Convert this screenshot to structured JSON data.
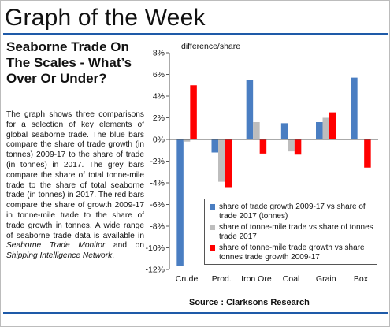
{
  "header": {
    "title": "Graph of the Week",
    "accent_color": "#1e5aa8"
  },
  "article": {
    "headline": "Seaborne Trade On The Scales - What’s Over Or Under?",
    "body_parts": [
      "The graph shows three comparisons for a selection of key elements of global seaborne trade. The blue bars compare the share of trade growth (in tonnes) 2009-17 to the share of trade (in tonnes) in 2017. The grey bars compare the share of total tonne-mile trade to the share of total seaborne trade (in tonnes) in 2017. The red bars compare the share of growth 2009-17 in tonne-mile trade to the share of trade growth in tonnes. A wide range of seaborne trade data is available in ",
      "Seaborne Trade Monitor",
      " and on ",
      "Shipping Intelligence Network",
      "."
    ]
  },
  "chart_data": {
    "type": "bar",
    "ylabel": "difference/share",
    "categories": [
      "Crude",
      "Prod.",
      "Iron Ore",
      "Coal",
      "Grain",
      "Box"
    ],
    "ylim": [
      -12,
      8
    ],
    "yticks": [
      -12,
      -10,
      -8,
      -6,
      -4,
      -2,
      0,
      2,
      4,
      6,
      8
    ],
    "ytick_labels": [
      "-12%",
      "-10%",
      "-8%",
      "-6%",
      "-4%",
      "-2%",
      "0%",
      "2%",
      "4%",
      "6%",
      "8%"
    ],
    "grid": false,
    "legend_position": "bottom-right",
    "series": [
      {
        "name": "share of trade growth 2009-17 vs share of trade 2017 (tonnes)",
        "color": "#4a7ec2",
        "values": [
          -11.7,
          -1.2,
          5.5,
          1.5,
          1.6,
          5.7
        ]
      },
      {
        "name": "share of tonne-mile trade vs share of tonnes trade 2017",
        "color": "#bdbdbd",
        "values": [
          -0.2,
          -3.9,
          1.6,
          -1.1,
          2.0,
          0.0
        ]
      },
      {
        "name": "share of tonne-mile trade growth vs share tonnes trade growth 2009-17",
        "color": "#ff0000",
        "values": [
          5.0,
          -4.4,
          -1.3,
          -1.4,
          2.5,
          -2.6
        ]
      }
    ]
  },
  "source": "Source : Clarksons Research"
}
